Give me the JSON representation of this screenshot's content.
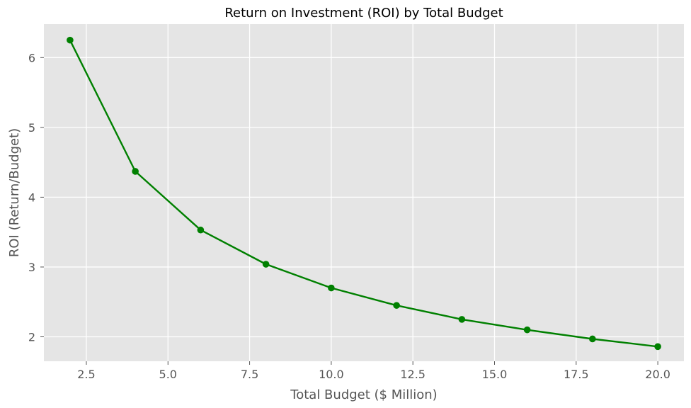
{
  "chart_data": {
    "type": "line",
    "title": "Return on Investment (ROI) by Total Budget",
    "xlabel": "Total Budget ($ Million)",
    "ylabel": "ROI (Return/Budget)",
    "xlim": [
      1.2,
      20.8
    ],
    "ylim": [
      1.65,
      6.48
    ],
    "xticks": [
      "2.5",
      "5.0",
      "7.5",
      "10.0",
      "12.5",
      "15.0",
      "17.5",
      "20.0"
    ],
    "yticks": [
      "2",
      "3",
      "4",
      "5",
      "6"
    ],
    "grid": true,
    "legend": "none",
    "colors": {
      "line": "#008000",
      "plot_background": "#e5e5e5",
      "grid": "#ffffff"
    },
    "series": [
      {
        "x": [
          2,
          4,
          6,
          8,
          10,
          12,
          14,
          16,
          18,
          20
        ],
        "y": [
          6.25,
          4.37,
          3.53,
          3.04,
          2.7,
          2.45,
          2.25,
          2.1,
          1.97,
          1.86
        ]
      }
    ]
  }
}
